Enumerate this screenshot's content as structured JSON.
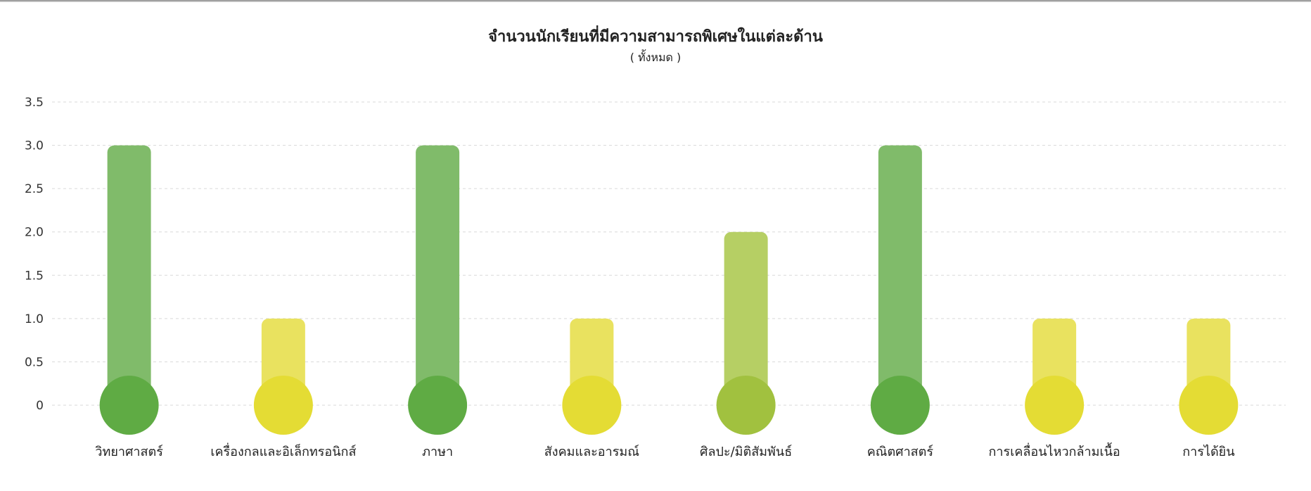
{
  "chart_data": {
    "type": "bar",
    "title": "จำนวนนักเรียนที่มีความสามารถพิเศษในแต่ละด้าน",
    "subtitle": "( ทั้งหมด )",
    "categories": [
      "วิทยาศาสตร์",
      "เครื่องกลและอิเล็กทรอนิกส์",
      "ภาษา",
      "สังคมและอารมณ์",
      "ศิลปะ/มิติสัมพันธ์",
      "คณิตศาสตร์",
      "การเคลื่อนไหวกล้ามเนื้อ",
      "การได้ยิน"
    ],
    "values": [
      3,
      1,
      3,
      1,
      2,
      3,
      1,
      1
    ],
    "ylim": [
      0,
      3.5
    ],
    "yticks": [
      "0",
      "0.5",
      "1.0",
      "1.5",
      "2.0",
      "2.5",
      "3.0",
      "3.5"
    ],
    "grid": true,
    "legend": "none",
    "colors": {
      "high_bar": "#80bb6a",
      "high_dot": "#5fab44",
      "mid_bar": "#b6cf64",
      "mid_dot": "#a1c13f",
      "low_bar": "#e9e25f",
      "low_dot": "#e4dc34",
      "grid": "#d9d9d9"
    }
  }
}
